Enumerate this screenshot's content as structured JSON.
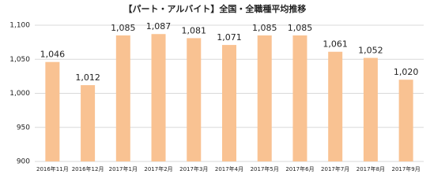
{
  "chart_data": {
    "type": "bar",
    "title": "【パート・アルバイト】全国・全職種平均推移",
    "categories": [
      "2016年11月",
      "2016年12月",
      "2017年1月",
      "2017年2月",
      "2017年3月",
      "2017年4月",
      "2017年5月",
      "2017年6月",
      "2017年7月",
      "2017年8月",
      "2017年9月"
    ],
    "values": [
      1046,
      1012,
      1085,
      1087,
      1081,
      1071,
      1085,
      1085,
      1061,
      1052,
      1020
    ],
    "value_labels": [
      "1,046",
      "1,012",
      "1,085",
      "1,087",
      "1,081",
      "1,071",
      "1,085",
      "1,085",
      "1,061",
      "1,052",
      "1,020"
    ],
    "color": "#f9c292",
    "ylim": [
      900,
      1100
    ],
    "yticks": [
      900,
      950,
      {
        "value": 1000,
        "label": "1,000"
      },
      {
        "value": 1050,
        "label": "1,050"
      },
      {
        "value": 1100,
        "label": "1,100"
      }
    ],
    "grid": true
  }
}
